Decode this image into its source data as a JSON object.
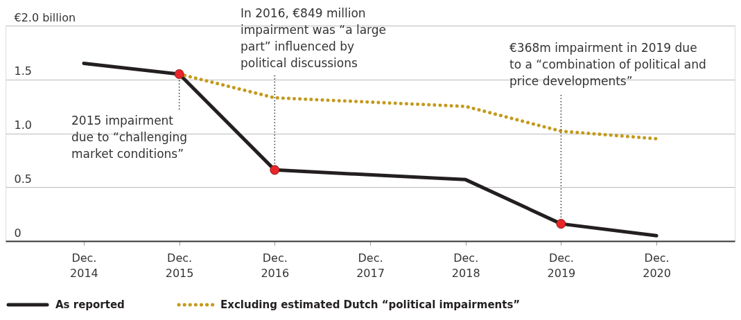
{
  "chart_data": {
    "type": "line",
    "categories": [
      "Dec. 2014",
      "Dec. 2015",
      "Dec. 2016",
      "Dec. 2017",
      "Dec. 2018",
      "Dec. 2019",
      "Dec. 2020"
    ],
    "series": [
      {
        "name": "As reported",
        "color": "#231f20",
        "line_style": "solid",
        "values": [
          1.65,
          1.55,
          0.66,
          null,
          0.57,
          0.16,
          0.05
        ]
      },
      {
        "name": "Excluding estimated Dutch “political impairments”",
        "color": "#c49a1c",
        "line_style": "dotted",
        "values": [
          null,
          1.55,
          1.33,
          null,
          1.25,
          1.02,
          0.95
        ]
      }
    ],
    "ylim": [
      0,
      2.0
    ],
    "yticks": [
      0,
      0.5,
      {
        "value": 1.0,
        "label": "1.0"
      },
      1.5,
      {
        "value": 2.0,
        "label": "€2.0 billion"
      }
    ],
    "grid": "y",
    "legend": "bottom left",
    "annotations": [
      {
        "text": "2015 impairment due to “challenging market conditions”",
        "x": "Dec. 2015",
        "y": 1.55
      },
      {
        "text": "In 2016, €849 million impairment was “a large part” influenced by political discussions",
        "x": "Dec. 2016",
        "y": 0.66
      },
      {
        "text": "€368m impairment in 2019 due to a “combination of political and price developments”",
        "x": "Dec. 2019",
        "y": 0.16
      }
    ]
  }
}
